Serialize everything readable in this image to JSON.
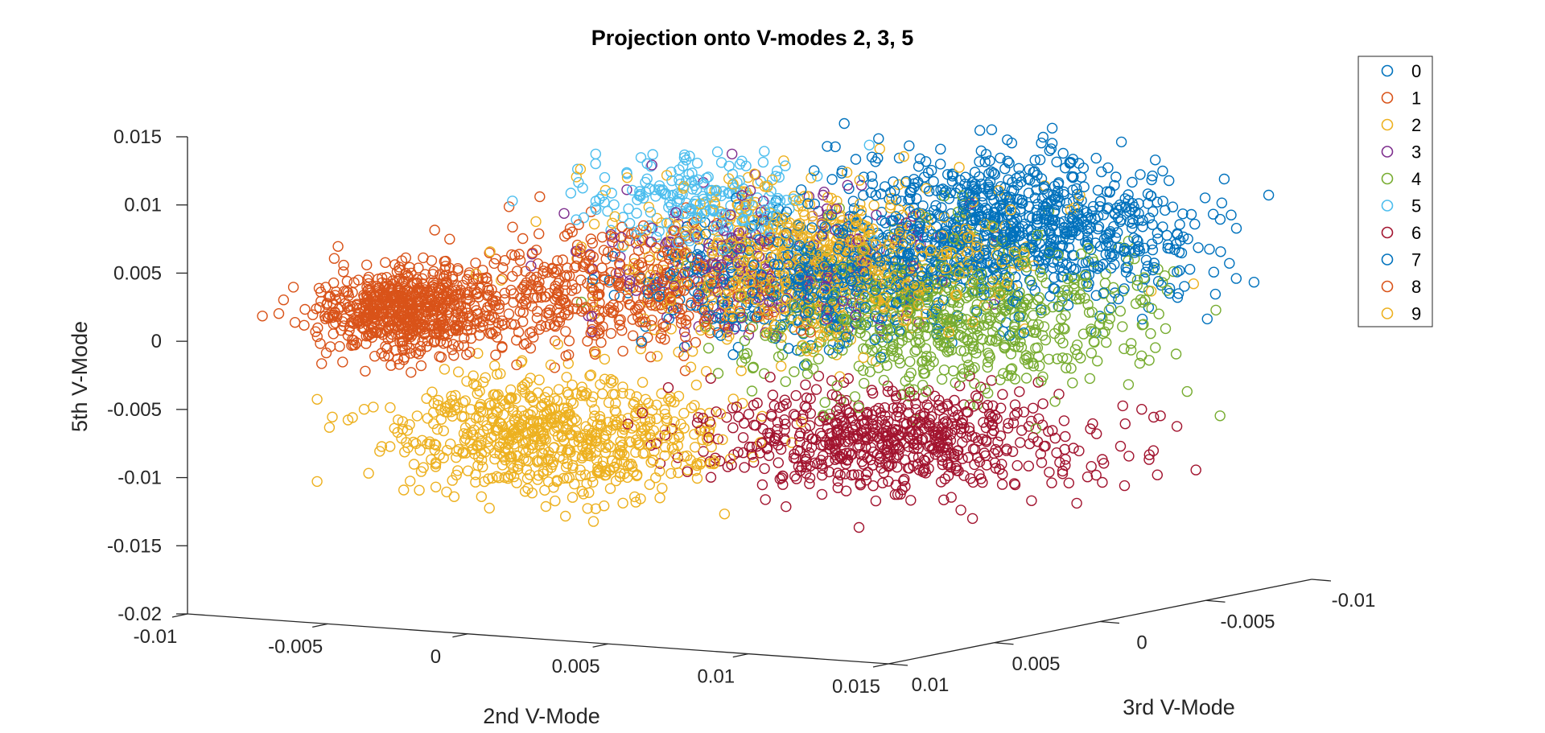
{
  "chart_data": {
    "type": "scatter",
    "title": "Projection onto V-modes 2, 3, 5",
    "xlabel": "2nd V-Mode",
    "ylabel": "3rd V-Mode",
    "zlabel": "5th V-Mode",
    "x_ticks": [
      "-0.01",
      "-0.005",
      "0",
      "0.005",
      "0.01",
      "0.015"
    ],
    "y_ticks": [
      "0.01",
      "0.005",
      "0",
      "-0.005",
      "-0.01"
    ],
    "z_ticks": [
      "0.015",
      "0.01",
      "0.005",
      "0",
      "-0.005",
      "-0.01",
      "-0.015",
      "-0.02"
    ],
    "xlim": [
      -0.01,
      0.015
    ],
    "ylim": [
      -0.01,
      0.01
    ],
    "zlim": [
      -0.02,
      0.015
    ],
    "grid": false,
    "legend_position": "top-right",
    "marker": "circle-open",
    "series": [
      {
        "name": "0",
        "color": "#0072BD",
        "cluster": {
          "x": 0.0075,
          "y": -0.006,
          "z": 0.006,
          "sx": 0.0028,
          "sy": 0.0022,
          "sz": 0.0025,
          "n": 900
        }
      },
      {
        "name": "1",
        "color": "#D95319",
        "cluster": {
          "x": -0.0075,
          "y": 0.003,
          "z": 0.0005,
          "sx": 0.0012,
          "sy": 0.0015,
          "sz": 0.0015,
          "n": 650
        }
      },
      {
        "name": "2",
        "color": "#EDB120",
        "cluster": {
          "x": -0.0015,
          "y": 0.004,
          "z": -0.0075,
          "sx": 0.0025,
          "sy": 0.002,
          "sz": 0.002,
          "n": 700
        }
      },
      {
        "name": "3",
        "color": "#7E2F8E",
        "cluster": {
          "x": 0.0015,
          "y": -0.002,
          "z": 0.004,
          "sx": 0.0025,
          "sy": 0.002,
          "sz": 0.0025,
          "n": 250
        }
      },
      {
        "name": "4",
        "color": "#77AC30",
        "cluster": {
          "x": 0.0065,
          "y": -0.004,
          "z": 0.0,
          "sx": 0.003,
          "sy": 0.0022,
          "sz": 0.0028,
          "n": 700
        }
      },
      {
        "name": "5",
        "color": "#4DBEEE",
        "cluster": {
          "x": 0.001,
          "y": 0.0005,
          "z": 0.009,
          "sx": 0.0018,
          "sy": 0.0015,
          "sz": 0.0015,
          "n": 220
        }
      },
      {
        "name": "6",
        "color": "#A2142F",
        "cluster": {
          "x": 0.0065,
          "y": -0.0015,
          "z": -0.0085,
          "sx": 0.003,
          "sy": 0.002,
          "sz": 0.0018,
          "n": 650
        }
      },
      {
        "name": "7",
        "color": "#0072BD",
        "cluster": {
          "x": 0.0025,
          "y": -0.003,
          "z": 0.002,
          "sx": 0.0025,
          "sy": 0.002,
          "sz": 0.002,
          "n": 450
        }
      },
      {
        "name": "8",
        "color": "#D95319",
        "cluster": {
          "x": -0.002,
          "y": 0.001,
          "z": 0.002,
          "sx": 0.0025,
          "sy": 0.0018,
          "sz": 0.0022,
          "n": 450
        }
      },
      {
        "name": "9",
        "color": "#EDB120",
        "cluster": {
          "x": 0.003,
          "y": -0.002,
          "z": 0.004,
          "sx": 0.003,
          "sy": 0.0022,
          "sz": 0.0028,
          "n": 750
        }
      }
    ]
  }
}
